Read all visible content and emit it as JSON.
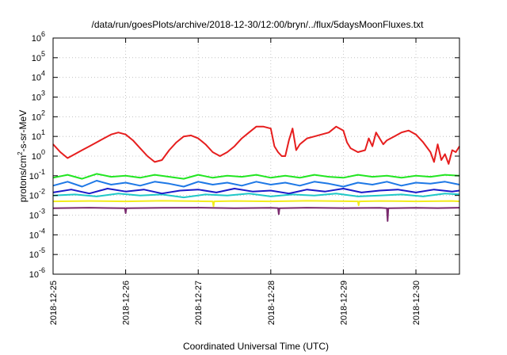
{
  "chart_data": {
    "type": "line",
    "title": "/data/run/goesPlots/archive/2018-12-30/12:00/bryn/../flux/5daysMoonFluxes.txt",
    "xlabel": "Coordinated Universal Time (UTC)",
    "ylabel": "protons/cm²-s-sr-MeV",
    "ylabel_parts": [
      "protons/cm",
      "2",
      "-s-sr-MeV"
    ],
    "y_scale": "log",
    "ylim_exp": [
      -6,
      6
    ],
    "y_ticks": [
      {
        "exp": -6,
        "base": "10",
        "sup": "-6"
      },
      {
        "exp": -5,
        "base": "10",
        "sup": "-5"
      },
      {
        "exp": -4,
        "base": "10",
        "sup": "-4"
      },
      {
        "exp": -3,
        "base": "10",
        "sup": "-3"
      },
      {
        "exp": -2,
        "base": "10",
        "sup": "-2"
      },
      {
        "exp": -1,
        "base": "10",
        "sup": "-1"
      },
      {
        "exp": 0,
        "base": "10",
        "sup": "0"
      },
      {
        "exp": 1,
        "base": "10",
        "sup": "1"
      },
      {
        "exp": 2,
        "base": "10",
        "sup": "2"
      },
      {
        "exp": 3,
        "base": "10",
        "sup": "3"
      },
      {
        "exp": 4,
        "base": "10",
        "sup": "4"
      },
      {
        "exp": 5,
        "base": "10",
        "sup": "5"
      },
      {
        "exp": 6,
        "base": "10",
        "sup": "6"
      }
    ],
    "x_days_range": [
      0,
      5.6
    ],
    "x_ticks": [
      {
        "day": 0,
        "label": "2018-12-25"
      },
      {
        "day": 1,
        "label": "2018-12-26"
      },
      {
        "day": 2,
        "label": "2018-12-27"
      },
      {
        "day": 3,
        "label": "2018-12-28"
      },
      {
        "day": 4,
        "label": "2018-12-29"
      },
      {
        "day": 5,
        "label": "2018-12-30"
      }
    ],
    "grid": true,
    "legend": "none",
    "series": [
      {
        "color": "#7a2a6e",
        "day": [
          0,
          0.5,
          0.99,
          1,
          1.01,
          1.5,
          2,
          2.5,
          3,
          3.1,
          3.11,
          3.12,
          3.5,
          4,
          4.5,
          4.6,
          4.61,
          4.62,
          5,
          5.3,
          5.6
        ],
        "log10": [
          -2.65,
          -2.62,
          -2.65,
          -2.9,
          -2.65,
          -2.63,
          -2.62,
          -2.65,
          -2.63,
          -2.64,
          -2.95,
          -2.65,
          -2.62,
          -2.64,
          -2.63,
          -2.65,
          -3.3,
          -2.65,
          -2.63,
          -2.64,
          -2.62
        ]
      },
      {
        "color": "#f2ec1c",
        "day": [
          0,
          0.5,
          1,
          1.5,
          2,
          2.2,
          2.21,
          2.22,
          2.5,
          3,
          3.5,
          4,
          4.2,
          4.21,
          4.22,
          4.5,
          5,
          5.5,
          5.6
        ],
        "log10": [
          -2.3,
          -2.28,
          -2.3,
          -2.27,
          -2.29,
          -2.3,
          -2.55,
          -2.3,
          -2.28,
          -2.3,
          -2.27,
          -2.29,
          -2.3,
          -2.5,
          -2.3,
          -2.28,
          -2.3,
          -2.28,
          -2.3
        ]
      },
      {
        "color": "#1fc8c8",
        "day": [
          0,
          0.3,
          0.6,
          0.9,
          1.2,
          1.5,
          1.8,
          2.1,
          2.4,
          2.7,
          3,
          3.3,
          3.6,
          3.9,
          4.2,
          4.5,
          4.8,
          5.1,
          5.4,
          5.6
        ],
        "log10": [
          -2.0,
          -1.95,
          -2.05,
          -1.9,
          -2.0,
          -1.95,
          -2.1,
          -1.95,
          -2.0,
          -1.9,
          -2.05,
          -1.95,
          -2.0,
          -1.9,
          -2.05,
          -2.0,
          -1.95,
          -2.05,
          -1.9,
          -1.95
        ]
      },
      {
        "color": "#1a1ac8",
        "day": [
          0,
          0.25,
          0.5,
          0.75,
          1,
          1.25,
          1.5,
          1.75,
          2,
          2.25,
          2.5,
          2.75,
          3,
          3.25,
          3.5,
          3.75,
          4,
          4.25,
          4.5,
          4.75,
          5,
          5.25,
          5.5,
          5.6
        ],
        "log10": [
          -1.85,
          -1.7,
          -1.9,
          -1.65,
          -1.8,
          -1.7,
          -1.9,
          -1.75,
          -1.7,
          -1.85,
          -1.65,
          -1.8,
          -1.75,
          -1.9,
          -1.7,
          -1.8,
          -1.65,
          -1.85,
          -1.75,
          -1.7,
          -1.85,
          -1.7,
          -1.8,
          -1.75
        ]
      },
      {
        "color": "#1e78e6",
        "day": [
          0,
          0.2,
          0.4,
          0.6,
          0.8,
          1,
          1.2,
          1.4,
          1.6,
          1.8,
          2,
          2.2,
          2.4,
          2.6,
          2.8,
          3,
          3.2,
          3.4,
          3.6,
          3.8,
          4,
          4.2,
          4.4,
          4.6,
          4.8,
          5,
          5.2,
          5.4,
          5.6
        ],
        "log10": [
          -1.5,
          -1.3,
          -1.55,
          -1.25,
          -1.45,
          -1.35,
          -1.5,
          -1.3,
          -1.4,
          -1.55,
          -1.3,
          -1.45,
          -1.35,
          -1.5,
          -1.3,
          -1.45,
          -1.35,
          -1.5,
          -1.3,
          -1.4,
          -1.55,
          -1.35,
          -1.45,
          -1.3,
          -1.5,
          -1.35,
          -1.4,
          -1.3,
          -1.45
        ]
      },
      {
        "color": "#22e622",
        "day": [
          0,
          0.2,
          0.4,
          0.6,
          0.8,
          1,
          1.2,
          1.4,
          1.6,
          1.8,
          2,
          2.2,
          2.4,
          2.6,
          2.8,
          3,
          3.2,
          3.4,
          3.6,
          3.8,
          4,
          4.2,
          4.4,
          4.6,
          4.8,
          5,
          5.2,
          5.4,
          5.6
        ],
        "log10": [
          -1.1,
          -0.95,
          -1.15,
          -0.9,
          -1.05,
          -1.0,
          -1.1,
          -0.95,
          -1.05,
          -1.15,
          -0.95,
          -1.1,
          -1.0,
          -1.05,
          -0.95,
          -1.1,
          -1.0,
          -1.1,
          -0.95,
          -1.05,
          -1.1,
          -0.95,
          -1.05,
          -1.0,
          -1.1,
          -1.0,
          -1.05,
          -0.95,
          -1.0
        ]
      },
      {
        "color": "#e61e1e",
        "day": [
          0,
          0.1,
          0.2,
          0.3,
          0.4,
          0.5,
          0.6,
          0.7,
          0.8,
          0.9,
          1,
          1.1,
          1.2,
          1.3,
          1.4,
          1.5,
          1.6,
          1.7,
          1.8,
          1.9,
          2,
          2.1,
          2.2,
          2.3,
          2.4,
          2.5,
          2.6,
          2.7,
          2.8,
          2.9,
          3,
          3.05,
          3.1,
          3.15,
          3.2,
          3.25,
          3.3,
          3.35,
          3.4,
          3.5,
          3.6,
          3.7,
          3.8,
          3.9,
          4,
          4.05,
          4.1,
          4.2,
          4.3,
          4.35,
          4.4,
          4.45,
          4.5,
          4.55,
          4.6,
          4.7,
          4.8,
          4.9,
          5,
          5.1,
          5.2,
          5.25,
          5.3,
          5.35,
          5.4,
          5.45,
          5.5,
          5.55,
          5.6
        ],
        "log10": [
          0.6,
          0.2,
          -0.1,
          0.1,
          0.3,
          0.5,
          0.7,
          0.9,
          1.1,
          1.2,
          1.1,
          0.8,
          0.4,
          0.0,
          -0.3,
          -0.2,
          0.3,
          0.7,
          1.0,
          1.05,
          0.9,
          0.6,
          0.2,
          0.0,
          0.2,
          0.5,
          0.9,
          1.2,
          1.5,
          1.5,
          1.4,
          0.5,
          0.2,
          0.0,
          0.0,
          0.8,
          1.4,
          0.3,
          0.6,
          0.9,
          1.0,
          1.1,
          1.2,
          1.5,
          1.3,
          0.7,
          0.4,
          0.2,
          0.3,
          0.9,
          0.5,
          1.2,
          0.9,
          0.6,
          0.8,
          1.0,
          1.2,
          1.3,
          1.1,
          0.7,
          0.2,
          -0.3,
          0.6,
          -0.2,
          0.1,
          -0.4,
          0.3,
          0.2,
          0.5
        ]
      }
    ]
  }
}
